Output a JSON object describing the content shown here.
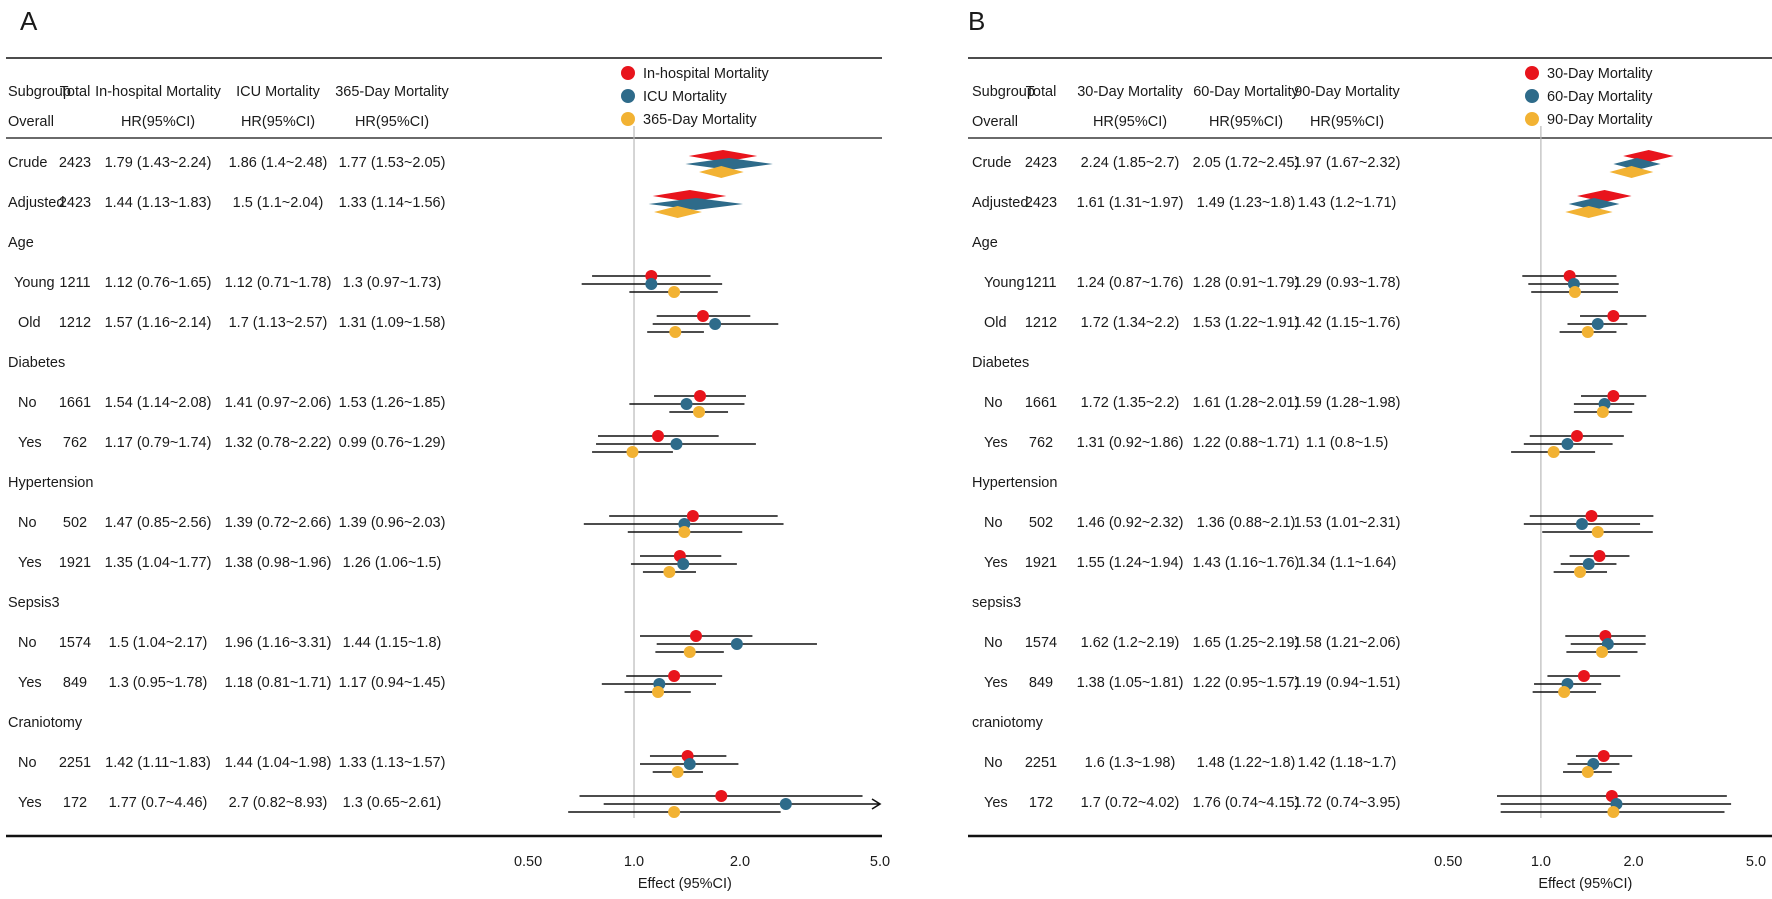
{
  "chart_data": [
    {
      "type": "forest",
      "panel_label": "A",
      "column_headers": {
        "subgroup": "Subgroup",
        "total": "Total",
        "outcomes": [
          "In-hospital Mortality",
          "ICU Mortality",
          "365-Day Mortality"
        ]
      },
      "overall_label": "Overall",
      "hr_label": "HR(95%CI)",
      "legend": [
        "In-hospital Mortality",
        "ICU Mortality",
        "365-Day Mortality"
      ],
      "series_colors": [
        "#e8141c",
        "#2e6b8a",
        "#f2b233"
      ],
      "x_axis": {
        "scale": "log",
        "range": [
          0.3,
          5.0
        ],
        "ticks": [
          0.5,
          1.0,
          2.0,
          5.0
        ],
        "tick_labels": [
          "0.50",
          "1.0",
          "2.0",
          "5.0"
        ],
        "label": "Effect (95%CI)",
        "reference": 1.0
      },
      "rows": [
        {
          "kind": "row",
          "label": "Crude",
          "total": "2423",
          "shape": "diamond",
          "texts": [
            "1.79 (1.43~2.24)",
            "1.86 (1.4~2.48)",
            "1.77 (1.53~2.05)"
          ],
          "est": [
            1.79,
            1.86,
            1.77
          ],
          "lo": [
            1.43,
            1.4,
            1.53
          ],
          "hi": [
            2.24,
            2.48,
            2.05
          ]
        },
        {
          "kind": "row",
          "label": "Adjusted",
          "total": "2423",
          "shape": "diamond",
          "texts": [
            "1.44 (1.13~1.83)",
            "1.5 (1.1~2.04)",
            "1.33 (1.14~1.56)"
          ],
          "est": [
            1.44,
            1.5,
            1.33
          ],
          "lo": [
            1.13,
            1.1,
            1.14
          ],
          "hi": [
            1.83,
            2.04,
            1.56
          ]
        },
        {
          "kind": "group",
          "label": "Age"
        },
        {
          "kind": "row",
          "label": "Young",
          "indent": 1,
          "total": "1211",
          "shape": "point",
          "texts": [
            "1.12 (0.76~1.65)",
            "1.12 (0.71~1.78)",
            "1.3 (0.97~1.73)"
          ],
          "est": [
            1.12,
            1.12,
            1.3
          ],
          "lo": [
            0.76,
            0.71,
            0.97
          ],
          "hi": [
            1.65,
            1.78,
            1.73
          ]
        },
        {
          "kind": "row",
          "label": "Old",
          "indent": 2,
          "total": "1212",
          "shape": "point",
          "texts": [
            "1.57 (1.16~2.14)",
            "1.7 (1.13~2.57)",
            "1.31 (1.09~1.58)"
          ],
          "est": [
            1.57,
            1.7,
            1.31
          ],
          "lo": [
            1.16,
            1.13,
            1.09
          ],
          "hi": [
            2.14,
            2.57,
            1.58
          ]
        },
        {
          "kind": "group",
          "label": "Diabetes"
        },
        {
          "kind": "row",
          "label": "No",
          "indent": 2,
          "total": "1661",
          "shape": "point",
          "texts": [
            "1.54 (1.14~2.08)",
            "1.41 (0.97~2.06)",
            "1.53 (1.26~1.85)"
          ],
          "est": [
            1.54,
            1.41,
            1.53
          ],
          "lo": [
            1.14,
            0.97,
            1.26
          ],
          "hi": [
            2.08,
            2.06,
            1.85
          ]
        },
        {
          "kind": "row",
          "label": "Yes",
          "indent": 2,
          "total": "762",
          "shape": "point",
          "texts": [
            "1.17 (0.79~1.74)",
            "1.32 (0.78~2.22)",
            "0.99 (0.76~1.29)"
          ],
          "est": [
            1.17,
            1.32,
            0.99
          ],
          "lo": [
            0.79,
            0.78,
            0.76
          ],
          "hi": [
            1.74,
            2.22,
            1.29
          ]
        },
        {
          "kind": "group",
          "label": "Hypertension"
        },
        {
          "kind": "row",
          "label": "No",
          "indent": 2,
          "total": "502",
          "shape": "point",
          "texts": [
            "1.47 (0.85~2.56)",
            "1.39 (0.72~2.66)",
            "1.39 (0.96~2.03)"
          ],
          "est": [
            1.47,
            1.39,
            1.39
          ],
          "lo": [
            0.85,
            0.72,
            0.96
          ],
          "hi": [
            2.56,
            2.66,
            2.03
          ]
        },
        {
          "kind": "row",
          "label": "Yes",
          "indent": 2,
          "total": "1921",
          "shape": "point",
          "texts": [
            "1.35 (1.04~1.77)",
            "1.38 (0.98~1.96)",
            "1.26 (1.06~1.5)"
          ],
          "est": [
            1.35,
            1.38,
            1.26
          ],
          "lo": [
            1.04,
            0.98,
            1.06
          ],
          "hi": [
            1.77,
            1.96,
            1.5
          ]
        },
        {
          "kind": "group",
          "label": "Sepsis3"
        },
        {
          "kind": "row",
          "label": "No",
          "indent": 2,
          "total": "1574",
          "shape": "point",
          "texts": [
            "1.5 (1.04~2.17)",
            "1.96 (1.16~3.31)",
            "1.44 (1.15~1.8)"
          ],
          "est": [
            1.5,
            1.96,
            1.44
          ],
          "lo": [
            1.04,
            1.16,
            1.15
          ],
          "hi": [
            2.17,
            3.31,
            1.8
          ]
        },
        {
          "kind": "row",
          "label": "Yes",
          "indent": 2,
          "total": "849",
          "shape": "point",
          "texts": [
            "1.3 (0.95~1.78)",
            "1.18 (0.81~1.71)",
            "1.17 (0.94~1.45)"
          ],
          "est": [
            1.3,
            1.18,
            1.17
          ],
          "lo": [
            0.95,
            0.81,
            0.94
          ],
          "hi": [
            1.78,
            1.71,
            1.45
          ]
        },
        {
          "kind": "group",
          "label": "Craniotomy"
        },
        {
          "kind": "row",
          "label": "No",
          "indent": 2,
          "total": "2251",
          "shape": "point",
          "texts": [
            "1.42 (1.11~1.83)",
            "1.44 (1.04~1.98)",
            "1.33 (1.13~1.57)"
          ],
          "est": [
            1.42,
            1.44,
            1.33
          ],
          "lo": [
            1.11,
            1.04,
            1.13
          ],
          "hi": [
            1.83,
            1.98,
            1.57
          ]
        },
        {
          "kind": "row",
          "label": "Yes",
          "indent": 2,
          "total": "172",
          "shape": "point",
          "texts": [
            "1.77 (0.7~4.46)",
            "2.7 (0.82~8.93)",
            "1.3 (0.65~2.61)"
          ],
          "est": [
            1.77,
            2.7,
            1.3
          ],
          "lo": [
            0.7,
            0.82,
            0.65
          ],
          "hi": [
            4.46,
            8.93,
            2.61
          ]
        }
      ]
    },
    {
      "type": "forest",
      "panel_label": "B",
      "column_headers": {
        "subgroup": "Subgroup",
        "total": "Total",
        "outcomes": [
          "30-Day Mortality",
          "60-Day Mortality",
          "90-Day Mortality"
        ]
      },
      "overall_label": "Overall",
      "hr_label": "HR(95%CI)",
      "legend": [
        "30-Day Mortality",
        "60-Day Mortality",
        "90-Day Mortality"
      ],
      "series_colors": [
        "#e8141c",
        "#2e6b8a",
        "#f2b233"
      ],
      "x_axis": {
        "scale": "log",
        "range": [
          0.3,
          5.0
        ],
        "ticks": [
          0.5,
          1.0,
          2.0,
          5.0
        ],
        "tick_labels": [
          "0.50",
          "1.0",
          "2.0",
          "5.0"
        ],
        "label": "Effect (95%CI)",
        "reference": 1.0
      },
      "rows": [
        {
          "kind": "row",
          "label": "Crude",
          "total": "2423",
          "shape": "diamond",
          "texts": [
            "2.24 (1.85~2.7)",
            "2.05 (1.72~2.45)",
            "1.97 (1.67~2.32)"
          ],
          "est": [
            2.24,
            2.05,
            1.97
          ],
          "lo": [
            1.85,
            1.72,
            1.67
          ],
          "hi": [
            2.7,
            2.45,
            2.32
          ]
        },
        {
          "kind": "row",
          "label": "Adjusted",
          "total": "2423",
          "shape": "diamond",
          "texts": [
            "1.61 (1.31~1.97)",
            "1.49 (1.23~1.8)",
            "1.43 (1.2~1.71)"
          ],
          "est": [
            1.61,
            1.49,
            1.43
          ],
          "lo": [
            1.31,
            1.23,
            1.2
          ],
          "hi": [
            1.97,
            1.8,
            1.71
          ]
        },
        {
          "kind": "group",
          "label": "Age"
        },
        {
          "kind": "row",
          "label": "Young",
          "indent": 2,
          "total": "1211",
          "shape": "point",
          "texts": [
            "1.24 (0.87~1.76)",
            "1.28 (0.91~1.79)",
            "1.29 (0.93~1.78)"
          ],
          "est": [
            1.24,
            1.28,
            1.29
          ],
          "lo": [
            0.87,
            0.91,
            0.93
          ],
          "hi": [
            1.76,
            1.79,
            1.78
          ]
        },
        {
          "kind": "row",
          "label": "Old",
          "indent": 2,
          "total": "1212",
          "shape": "point",
          "texts": [
            "1.72 (1.34~2.2)",
            "1.53 (1.22~1.91)",
            "1.42 (1.15~1.76)"
          ],
          "est": [
            1.72,
            1.53,
            1.42
          ],
          "lo": [
            1.34,
            1.22,
            1.15
          ],
          "hi": [
            2.2,
            1.91,
            1.76
          ]
        },
        {
          "kind": "group",
          "label": "Diabetes"
        },
        {
          "kind": "row",
          "label": "No",
          "indent": 2,
          "total": "1661",
          "shape": "point",
          "texts": [
            "1.72 (1.35~2.2)",
            "1.61 (1.28~2.01)",
            "1.59 (1.28~1.98)"
          ],
          "est": [
            1.72,
            1.61,
            1.59
          ],
          "lo": [
            1.35,
            1.28,
            1.28
          ],
          "hi": [
            2.2,
            2.01,
            1.98
          ]
        },
        {
          "kind": "row",
          "label": "Yes",
          "indent": 2,
          "total": "762",
          "shape": "point",
          "texts": [
            "1.31 (0.92~1.86)",
            "1.22 (0.88~1.71)",
            "1.1 (0.8~1.5)"
          ],
          "est": [
            1.31,
            1.22,
            1.1
          ],
          "lo": [
            0.92,
            0.88,
            0.8
          ],
          "hi": [
            1.86,
            1.71,
            1.5
          ]
        },
        {
          "kind": "group",
          "label": "Hypertension"
        },
        {
          "kind": "row",
          "label": "No",
          "indent": 2,
          "total": "502",
          "shape": "point",
          "texts": [
            "1.46 (0.92~2.32)",
            "1.36 (0.88~2.1)",
            "1.53 (1.01~2.31)"
          ],
          "est": [
            1.46,
            1.36,
            1.53
          ],
          "lo": [
            0.92,
            0.88,
            1.01
          ],
          "hi": [
            2.32,
            2.1,
            2.31
          ]
        },
        {
          "kind": "row",
          "label": "Yes",
          "indent": 2,
          "total": "1921",
          "shape": "point",
          "texts": [
            "1.55 (1.24~1.94)",
            "1.43 (1.16~1.76)",
            "1.34 (1.1~1.64)"
          ],
          "est": [
            1.55,
            1.43,
            1.34
          ],
          "lo": [
            1.24,
            1.16,
            1.1
          ],
          "hi": [
            1.94,
            1.76,
            1.64
          ]
        },
        {
          "kind": "group",
          "label": "sepsis3"
        },
        {
          "kind": "row",
          "label": "No",
          "indent": 2,
          "total": "1574",
          "shape": "point",
          "texts": [
            "1.62 (1.2~2.19)",
            "1.65 (1.25~2.19)",
            "1.58 (1.21~2.06)"
          ],
          "est": [
            1.62,
            1.65,
            1.58
          ],
          "lo": [
            1.2,
            1.25,
            1.21
          ],
          "hi": [
            2.19,
            2.19,
            2.06
          ]
        },
        {
          "kind": "row",
          "label": "Yes",
          "indent": 2,
          "total": "849",
          "shape": "point",
          "texts": [
            "1.38 (1.05~1.81)",
            "1.22 (0.95~1.57)",
            "1.19 (0.94~1.51)"
          ],
          "est": [
            1.38,
            1.22,
            1.19
          ],
          "lo": [
            1.05,
            0.95,
            0.94
          ],
          "hi": [
            1.81,
            1.57,
            1.51
          ]
        },
        {
          "kind": "group",
          "label": "craniotomy"
        },
        {
          "kind": "row",
          "label": "No",
          "indent": 2,
          "total": "2251",
          "shape": "point",
          "texts": [
            "1.6 (1.3~1.98)",
            "1.48 (1.22~1.8)",
            "1.42 (1.18~1.7)"
          ],
          "est": [
            1.6,
            1.48,
            1.42
          ],
          "lo": [
            1.3,
            1.22,
            1.18
          ],
          "hi": [
            1.98,
            1.8,
            1.7
          ]
        },
        {
          "kind": "row",
          "label": "Yes",
          "indent": 2,
          "total": "172",
          "shape": "point",
          "texts": [
            "1.7 (0.72~4.02)",
            "1.76 (0.74~4.15)",
            "1.72 (0.74~3.95)"
          ],
          "est": [
            1.7,
            1.76,
            1.72
          ],
          "lo": [
            0.72,
            0.74,
            0.74
          ],
          "hi": [
            4.02,
            4.15,
            3.95
          ]
        }
      ]
    }
  ]
}
